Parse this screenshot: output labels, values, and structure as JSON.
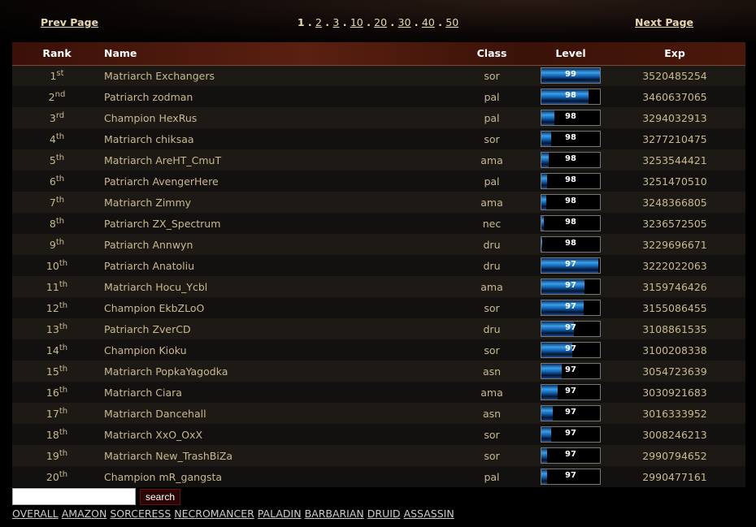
{
  "nav": {
    "prev": "Prev Page",
    "next": "Next Page",
    "current": "1",
    "pages": [
      "2",
      "3",
      "10",
      "20",
      "30",
      "40",
      "50"
    ]
  },
  "table": {
    "headers": [
      "Rank",
      "Name",
      "Class",
      "Level",
      "Exp"
    ],
    "rows": [
      {
        "rank": "1",
        "suf": "st",
        "name": "Matriarch Exchangers",
        "cls": "sor",
        "level": "99",
        "progress": 1.0,
        "exp": "3520485254"
      },
      {
        "rank": "2",
        "suf": "nd",
        "name": "Patriarch zodman",
        "cls": "pal",
        "level": "98",
        "progress": 0.8,
        "exp": "3460637065"
      },
      {
        "rank": "3",
        "suf": "rd",
        "name": "Champion HexRus",
        "cls": "pal",
        "level": "98",
        "progress": 0.22,
        "exp": "3294032913"
      },
      {
        "rank": "4",
        "suf": "th",
        "name": "Matriarch chiksaa",
        "cls": "sor",
        "level": "98",
        "progress": 0.17,
        "exp": "3277210475"
      },
      {
        "rank": "5",
        "suf": "th",
        "name": "Matriarch AreHT_CmuT",
        "cls": "ama",
        "level": "98",
        "progress": 0.12,
        "exp": "3253544421"
      },
      {
        "rank": "6",
        "suf": "th",
        "name": "Patriarch AvengerHere",
        "cls": "pal",
        "level": "98",
        "progress": 0.1,
        "exp": "3251470510"
      },
      {
        "rank": "7",
        "suf": "th",
        "name": "Matriarch Zimmy",
        "cls": "ama",
        "level": "98",
        "progress": 0.08,
        "exp": "3248366805"
      },
      {
        "rank": "8",
        "suf": "th",
        "name": "Patriarch ZX_Spectrum",
        "cls": "nec",
        "level": "98",
        "progress": 0.04,
        "exp": "3236572505"
      },
      {
        "rank": "9",
        "suf": "th",
        "name": "Patriarch Annwyn",
        "cls": "dru",
        "level": "98",
        "progress": 0.02,
        "exp": "3229696671"
      },
      {
        "rank": "10",
        "suf": "th",
        "name": "Patriarch Anatoliu",
        "cls": "dru",
        "level": "97",
        "progress": 0.97,
        "exp": "3222022063"
      },
      {
        "rank": "11",
        "suf": "th",
        "name": "Matriarch Hocu_Ycbl",
        "cls": "ama",
        "level": "97",
        "progress": 0.74,
        "exp": "3159746426"
      },
      {
        "rank": "12",
        "suf": "th",
        "name": "Champion EkbZLoO",
        "cls": "sor",
        "level": "97",
        "progress": 0.72,
        "exp": "3155086455"
      },
      {
        "rank": "13",
        "suf": "th",
        "name": "Patriarch ZverCD",
        "cls": "dru",
        "level": "97",
        "progress": 0.55,
        "exp": "3108861535"
      },
      {
        "rank": "14",
        "suf": "th",
        "name": "Champion Kioku",
        "cls": "sor",
        "level": "97",
        "progress": 0.53,
        "exp": "3100208338"
      },
      {
        "rank": "15",
        "suf": "th",
        "name": "Matriarch PopkaYagodka",
        "cls": "asn",
        "level": "97",
        "progress": 0.35,
        "exp": "3054723639"
      },
      {
        "rank": "16",
        "suf": "th",
        "name": "Matriarch Ciara",
        "cls": "ama",
        "level": "97",
        "progress": 0.28,
        "exp": "3030921683"
      },
      {
        "rank": "17",
        "suf": "th",
        "name": "Matriarch Dancehall",
        "cls": "asn",
        "level": "97",
        "progress": 0.2,
        "exp": "3016333952"
      },
      {
        "rank": "18",
        "suf": "th",
        "name": "Matriarch XxO_OxX",
        "cls": "sor",
        "level": "97",
        "progress": 0.17,
        "exp": "3008246213"
      },
      {
        "rank": "19",
        "suf": "th",
        "name": "Matriarch New_TrashBiZa",
        "cls": "sor",
        "level": "97",
        "progress": 0.1,
        "exp": "2990794652"
      },
      {
        "rank": "20",
        "suf": "th",
        "name": "Champion mR_gangsta",
        "cls": "pal",
        "level": "97",
        "progress": 0.1,
        "exp": "2990477161"
      }
    ]
  },
  "search": {
    "value": "",
    "button": "search"
  },
  "class_links": [
    "OVERALL",
    "AMAZON",
    "SORCERESS",
    "NECROMANCER",
    "PALADIN",
    "BARBARIAN",
    "DRUID",
    "ASSASSIN"
  ]
}
